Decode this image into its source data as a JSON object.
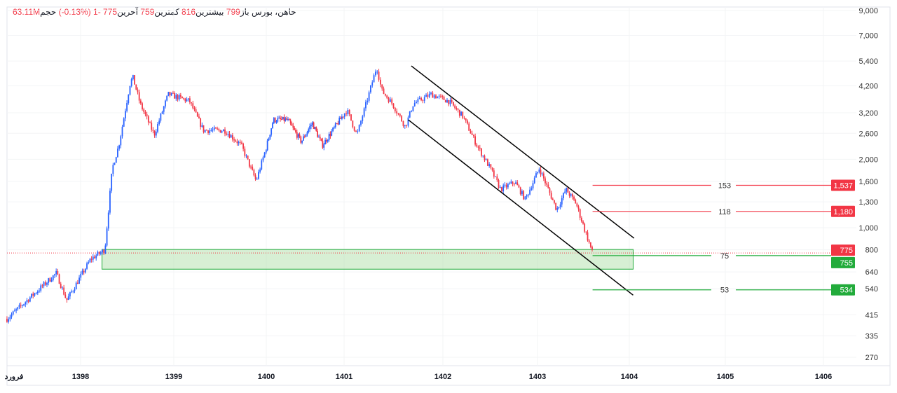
{
  "legend": {
    "symbol": "خاهن، بورس",
    "open_label": "باز",
    "open": "799",
    "high_label": "بیشترین",
    "high": "816",
    "low_label": "کمترین",
    "low": "759",
    "close_label": "آخرین",
    "close": "775",
    "change": "-1",
    "change_pct": "(-0.13%)",
    "volume_label": "حجم",
    "volume": "63.11M"
  },
  "colors": {
    "up": "#2962ff",
    "down": "#f23645",
    "green": "#22ab3b",
    "zone": "#b7e1b0"
  },
  "chart_data": {
    "type": "candlestick",
    "y_scale": "log",
    "ylim": [
      270,
      9000
    ],
    "y_ticks": [
      "9,000",
      "7,000",
      "5,400",
      "4,200",
      "3,200",
      "2,600",
      "2,000",
      "1,600",
      "1,300",
      "1,000",
      "800",
      "640",
      "540",
      "415",
      "335",
      "270"
    ],
    "y_tick_values": [
      9000,
      7000,
      5400,
      4200,
      3200,
      2600,
      2000,
      1600,
      1300,
      1000,
      800,
      640,
      540,
      415,
      335,
      270
    ],
    "x_ticks": [
      "فرورد",
      "1398",
      "1399",
      "1400",
      "1401",
      "1402",
      "1403",
      "1404",
      "1405",
      "1406"
    ],
    "x_tick_values": [
      1397.05,
      1398,
      1399,
      1400,
      1401,
      1402,
      1403,
      1404,
      1405,
      1406
    ],
    "price_path": [
      [
        1397.21,
        398
      ],
      [
        1397.74,
        632
      ],
      [
        1397.85,
        480
      ],
      [
        1398.11,
        730
      ],
      [
        1398.26,
        800
      ],
      [
        1398.34,
        1826
      ],
      [
        1398.41,
        2300
      ],
      [
        1398.53,
        4280
      ],
      [
        1398.56,
        4600
      ],
      [
        1398.64,
        3500
      ],
      [
        1398.79,
        2560
      ],
      [
        1398.94,
        3860
      ],
      [
        1399.17,
        3600
      ],
      [
        1399.32,
        2680
      ],
      [
        1399.55,
        2680
      ],
      [
        1399.73,
        2300
      ],
      [
        1399.89,
        1605
      ],
      [
        1400.09,
        2980
      ],
      [
        1400.27,
        2980
      ],
      [
        1400.45,
        2390
      ],
      [
        1400.59,
        2890
      ],
      [
        1400.72,
        2300
      ],
      [
        1401.03,
        3280
      ],
      [
        1401.13,
        2560
      ],
      [
        1401.24,
        3720
      ],
      [
        1401.33,
        5110
      ],
      [
        1401.38,
        4010
      ],
      [
        1401.49,
        3500
      ],
      [
        1401.62,
        2780
      ],
      [
        1401.7,
        3500
      ],
      [
        1401.88,
        3860
      ],
      [
        1402.06,
        3600
      ],
      [
        1402.21,
        3090
      ],
      [
        1402.36,
        2300
      ],
      [
        1402.5,
        1826
      ],
      [
        1402.61,
        1475
      ],
      [
        1402.76,
        1590
      ],
      [
        1402.87,
        1335
      ],
      [
        1403.02,
        1826
      ],
      [
        1403.21,
        1200
      ],
      [
        1403.31,
        1475
      ],
      [
        1403.42,
        1280
      ],
      [
        1403.52,
        965
      ],
      [
        1403.6,
        775
      ]
    ],
    "channel_upper": [
      [
        1401.68,
        5140
      ],
      [
        1404.05,
        900
      ]
    ],
    "channel_lower": [
      [
        1401.65,
        2980
      ],
      [
        1404.04,
        506
      ]
    ],
    "support_zone": {
      "from": 1398.23,
      "to": 1404.04,
      "low": 658,
      "high": 803
    },
    "levels": [
      {
        "price": 1537,
        "label": "1,537",
        "text": "153",
        "color": "#f23645"
      },
      {
        "price": 1180,
        "label": "1,180",
        "text": "118",
        "color": "#f23645"
      },
      {
        "price": 755,
        "label": "755",
        "text": "75",
        "color": "#22ab3b"
      },
      {
        "price": 534,
        "label": "534",
        "text": "53",
        "color": "#22ab3b"
      }
    ],
    "levels_start": 1403.6,
    "last_price": {
      "price": 775,
      "label": "775"
    }
  }
}
